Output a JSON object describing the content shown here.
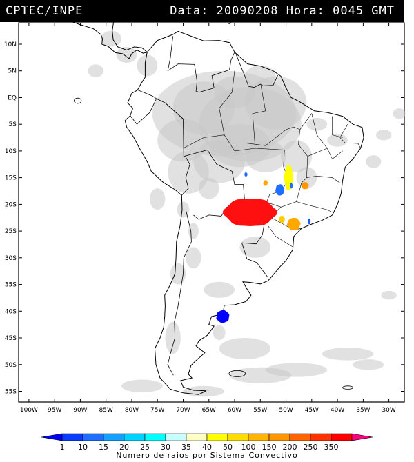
{
  "header": {
    "left": "CPTEC/INPE",
    "right": "Data: 20090208 Hora: 0045 GMT"
  },
  "map": {
    "lon_range": [
      -102,
      -27
    ],
    "lat_range": [
      -57,
      14
    ],
    "lat_labels": [
      "10N",
      "5N",
      "EQ",
      "5S",
      "10S",
      "15S",
      "20S",
      "25S",
      "30S",
      "35S",
      "40S",
      "45S",
      "50S",
      "55S"
    ],
    "lon_labels": [
      "100W",
      "95W",
      "90W",
      "85W",
      "80W",
      "75W",
      "70W",
      "65W",
      "60W",
      "55W",
      "50W",
      "45W",
      "40W",
      "35W",
      "30W"
    ],
    "colors": {
      "cloud": "#c8c8c8",
      "coast": "#000000"
    },
    "lightning_clusters": [
      {
        "lon": -57,
        "lat": -21.5,
        "color": "#ff1010"
      },
      {
        "lon": -49.5,
        "lat": -15,
        "color": "#ffff00"
      },
      {
        "lon": -50.8,
        "lat": -22.8,
        "color": "#ffcc00"
      },
      {
        "lon": -48.5,
        "lat": -23.7,
        "color": "#ffa800"
      },
      {
        "lon": -46.3,
        "lat": -16.5,
        "color": "#ff9900"
      },
      {
        "lon": -54,
        "lat": -16,
        "color": "#ffa800"
      },
      {
        "lon": -51.2,
        "lat": -17.3,
        "color": "#1e6fff"
      },
      {
        "lon": -49,
        "lat": -16.5,
        "color": "#1e6fff"
      },
      {
        "lon": -62.3,
        "lat": -41,
        "color": "#0000ff"
      },
      {
        "lon": -45.5,
        "lat": -23.2,
        "color": "#1e5aff"
      },
      {
        "lon": -57.8,
        "lat": -14.4,
        "color": "#1e6fff"
      }
    ]
  },
  "colorbar": {
    "title": "Numero de raios por Sistema Convectivo",
    "labels": [
      "1",
      "10",
      "15",
      "20",
      "25",
      "30",
      "35",
      "40",
      "50",
      "100",
      "150",
      "200",
      "250",
      "350"
    ],
    "colors": [
      "#0000ff",
      "#0a3cff",
      "#1e6fff",
      "#14a0ff",
      "#00d2ff",
      "#00ffff",
      "#c8ffff",
      "#ffffc8",
      "#ffff00",
      "#ffdc00",
      "#ffb400",
      "#ff9600",
      "#ff6400",
      "#ff3200",
      "#ff0000",
      "#ff0080"
    ]
  }
}
